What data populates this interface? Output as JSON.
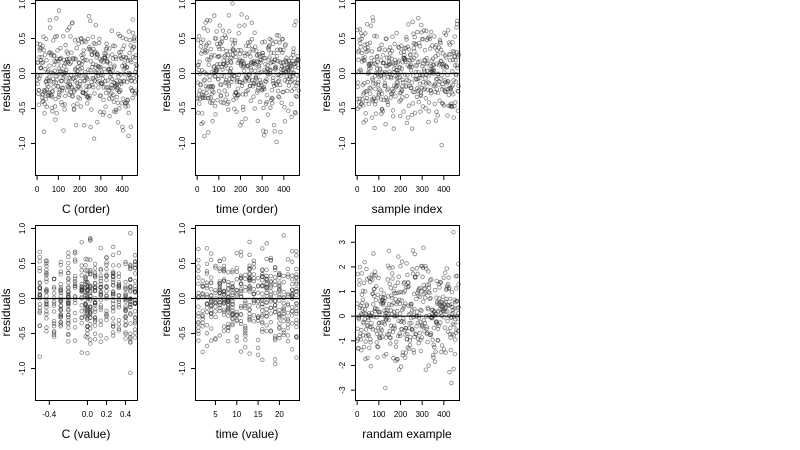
{
  "chart_data": [
    {
      "type": "scatter",
      "xlabel": "C (order)",
      "ylabel": "residuals",
      "xlim": [
        -10,
        470
      ],
      "ylim": [
        -1.45,
        1.05
      ],
      "xticks": [
        0,
        100,
        200,
        300,
        400
      ],
      "yticks": [
        1.0,
        0.5,
        0.0,
        -0.5,
        -1.0
      ],
      "ytick_labels": [
        "1.0",
        "0.5",
        "0.0",
        "-0.5",
        "-1.0"
      ],
      "hline": 0,
      "n_points": 470,
      "points": {
        "mode": "index",
        "seed": 11,
        "spread": 0.33,
        "lo": -1.4,
        "hi": 1.0
      }
    },
    {
      "type": "scatter",
      "xlabel": "time (order)",
      "ylabel": "residuals",
      "xlim": [
        -10,
        470
      ],
      "ylim": [
        -1.45,
        1.05
      ],
      "xticks": [
        0,
        100,
        200,
        300,
        400
      ],
      "yticks": [
        1.0,
        0.5,
        0.0,
        -0.5,
        -1.0
      ],
      "ytick_labels": [
        "1.0",
        "0.5",
        "0.0",
        "-0.5",
        "-1.0"
      ],
      "hline": 0,
      "n_points": 470,
      "points": {
        "mode": "index",
        "seed": 23,
        "spread": 0.33,
        "lo": -1.4,
        "hi": 1.0
      }
    },
    {
      "type": "scatter",
      "xlabel": "sample index",
      "ylabel": "residuals",
      "xlim": [
        -10,
        470
      ],
      "ylim": [
        -1.45,
        1.05
      ],
      "xticks": [
        0,
        100,
        200,
        300,
        400
      ],
      "yticks": [
        1.0,
        0.5,
        0.0,
        -0.5,
        -1.0
      ],
      "ytick_labels": [
        "1.0",
        "0.5",
        "0.0",
        "-0.5",
        "-1.0"
      ],
      "hline": 0,
      "n_points": 470,
      "points": {
        "mode": "index",
        "seed": 37,
        "spread": 0.33,
        "lo": -1.4,
        "hi": 1.0
      }
    },
    {
      "type": "scatter",
      "xlabel": "C (value)",
      "ylabel": "residuals",
      "xlim": [
        -0.55,
        0.52
      ],
      "ylim": [
        -1.45,
        1.05
      ],
      "xticks": [
        -0.4,
        0.0,
        0.2,
        0.4
      ],
      "xtick_labels": [
        "-0.4",
        "0.0",
        "0.2",
        "0.4"
      ],
      "yticks": [
        1.0,
        0.5,
        0.0,
        -0.5,
        -1.0
      ],
      "ytick_labels": [
        "1.0",
        "0.5",
        "0.0",
        "-0.5",
        "-1.0"
      ],
      "hline": 0,
      "n_points": 470,
      "points": {
        "mode": "discrete",
        "seed": 41,
        "spread": 0.33,
        "lo": -1.4,
        "hi": 1.0,
        "levels": [
          -0.5,
          -0.43,
          -0.35,
          -0.28,
          -0.2,
          -0.13,
          -0.06,
          -0.02,
          0.0,
          0.03,
          0.08,
          0.14,
          0.2,
          0.27,
          0.33,
          0.4,
          0.45,
          0.5
        ]
      }
    },
    {
      "type": "scatter",
      "xlabel": "time (value)",
      "ylabel": "residuals",
      "xlim": [
        0.2,
        24.6
      ],
      "ylim": [
        -1.45,
        1.05
      ],
      "xticks": [
        5,
        10,
        15,
        20
      ],
      "yticks": [
        1.0,
        0.5,
        0.0,
        -0.5,
        -1.0
      ],
      "ytick_labels": [
        "1.0",
        "0.5",
        "0.0",
        "-0.5",
        "-1.0"
      ],
      "hline": 0,
      "n_points": 470,
      "points": {
        "mode": "discrete",
        "seed": 53,
        "spread": 0.33,
        "lo": -1.4,
        "hi": 1.0,
        "levels": [
          1,
          2,
          3,
          4,
          5,
          6,
          7,
          8,
          9,
          10,
          11,
          12,
          13,
          14,
          15,
          16,
          17,
          18,
          19,
          20,
          21,
          22,
          23,
          24
        ]
      }
    },
    {
      "type": "scatter",
      "xlabel": "randam example",
      "ylabel": "residuals",
      "xlim": [
        -10,
        470
      ],
      "ylim": [
        -3.4,
        3.7
      ],
      "xticks": [
        0,
        100,
        200,
        300,
        400
      ],
      "yticks": [
        3,
        2,
        1,
        0,
        -1,
        -2,
        -3
      ],
      "ytick_labels": [
        "3",
        "2",
        "1",
        "0",
        "-1",
        "-2",
        "-3"
      ],
      "hline": 0,
      "n_points": 470,
      "points": {
        "mode": "index",
        "seed": 67,
        "spread": 1.0,
        "lo": -3.2,
        "hi": 3.5
      }
    }
  ]
}
